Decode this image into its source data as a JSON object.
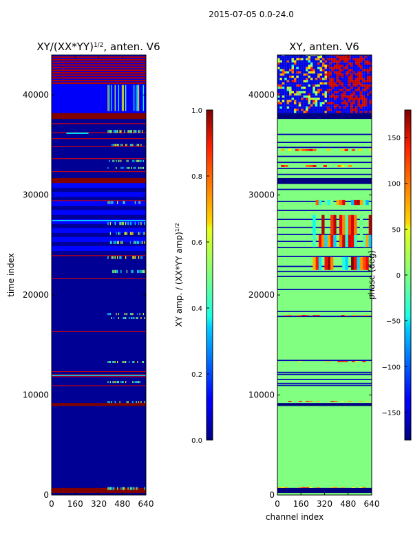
{
  "chart_data": [
    {
      "type": "heatmap",
      "suptitle": "2015-07-05 0.0-24.0",
      "title_main": "XY/(XX*YY)",
      "title_sup": "1/2",
      "title_tail": ", anten. V6",
      "xlabel": "",
      "ylabel": "time index",
      "xlim": [
        0,
        640
      ],
      "ylim": [
        0,
        44000
      ],
      "xticks": [
        "0",
        "160",
        "320",
        "480",
        "640"
      ],
      "yticks": [
        "0",
        "10000",
        "20000",
        "30000",
        "40000"
      ],
      "colorbar": {
        "label": "XY amp. / (XX*YY amp)",
        "label_sup": "1/2",
        "range": [
          0.0,
          1.0
        ],
        "ticks": [
          "0.0",
          "0.2",
          "0.4",
          "0.6",
          "0.8",
          "1.0"
        ]
      },
      "description_values": {
        "background": "near 0 (dark blue)",
        "flagged_rows_value": 1.0,
        "bright_channel_band": [
          380,
          620
        ]
      }
    },
    {
      "type": "heatmap",
      "title": "XY, anten. V6",
      "xlabel": "channel index",
      "ylabel": "",
      "xlim": [
        0,
        640
      ],
      "ylim": [
        0,
        44000
      ],
      "xticks": [
        "0",
        "160",
        "320",
        "480",
        "640"
      ],
      "yticks": [
        "0",
        "10000",
        "20000",
        "30000",
        "40000"
      ],
      "colorbar": {
        "label": "phase (deg)",
        "range": [
          -180,
          180
        ],
        "ticks": [
          "150",
          "100",
          "50",
          "0",
          "−50",
          "−100",
          "−150"
        ]
      },
      "description_values": {
        "background": "near 0 deg (green)",
        "flagged_rows_value": -180
      }
    }
  ]
}
